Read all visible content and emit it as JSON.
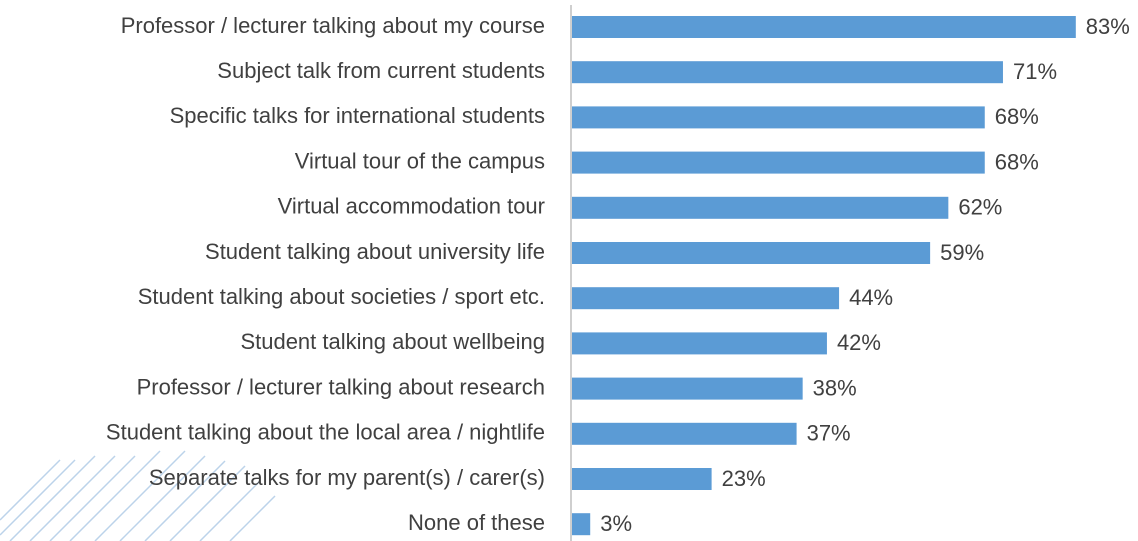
{
  "chart_data": {
    "type": "barh",
    "categories": [
      "Professor / lecturer talking about my course",
      "Subject talk from current students",
      "Specific talks for international students",
      "Virtual tour of the campus",
      "Virtual accommodation tour",
      "Student talking about university life",
      "Student talking about societies / sport etc.",
      "Student talking about wellbeing",
      "Professor / lecturer talking about research",
      "Student talking about the local area / nightlife",
      "Separate talks for my parent(s) / carer(s)",
      "None of these"
    ],
    "values": [
      83,
      71,
      68,
      68,
      62,
      59,
      44,
      42,
      38,
      37,
      23,
      3
    ],
    "value_labels": [
      "83%",
      "71%",
      "68%",
      "68%",
      "62%",
      "59%",
      "44%",
      "42%",
      "38%",
      "37%",
      "23%",
      "3%"
    ],
    "color": "#5b9bd5"
  }
}
